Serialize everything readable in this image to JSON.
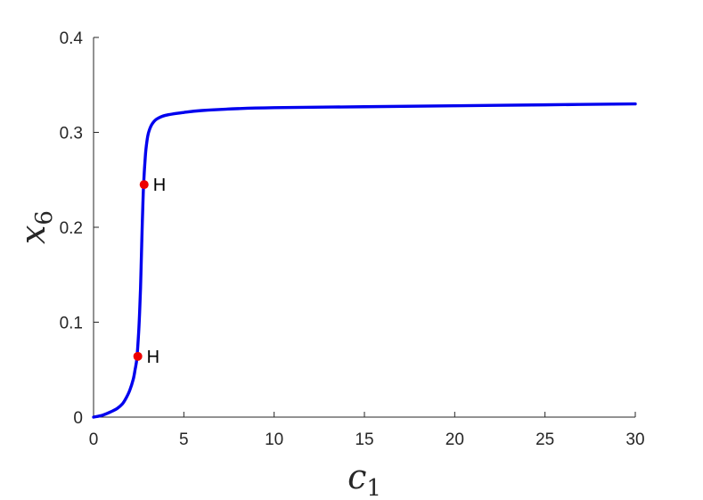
{
  "chart_data": {
    "type": "line",
    "xlabel": {
      "main": "c",
      "sub": "1"
    },
    "ylabel": {
      "main": "x",
      "sub": "6"
    },
    "xlim": [
      0,
      30
    ],
    "ylim": [
      0,
      0.4
    ],
    "x_ticks": [
      0,
      5,
      10,
      15,
      20,
      25,
      30
    ],
    "x_tick_labels": [
      "0",
      "5",
      "10",
      "15",
      "20",
      "25",
      "30"
    ],
    "y_ticks": [
      0,
      0.1,
      0.2,
      0.3,
      0.4
    ],
    "y_tick_labels": [
      "0",
      "0.1",
      "0.2",
      "0.3",
      "0.4"
    ],
    "grid": false,
    "series": [
      {
        "color": "#0000ee",
        "x": [
          0,
          0.5,
          1.0,
          1.3,
          1.6,
          1.8,
          2.0,
          2.2,
          2.3,
          2.4,
          2.5,
          2.55,
          2.6,
          2.65,
          2.7,
          2.75,
          2.8,
          2.85,
          2.9,
          3.0,
          3.1,
          3.25,
          3.5,
          4.0,
          5.0,
          6.0,
          8.0,
          10,
          15,
          20,
          25,
          30
        ],
        "y": [
          0,
          0.002,
          0.006,
          0.009,
          0.014,
          0.02,
          0.028,
          0.04,
          0.05,
          0.062,
          0.09,
          0.11,
          0.135,
          0.17,
          0.205,
          0.235,
          0.255,
          0.27,
          0.282,
          0.296,
          0.303,
          0.309,
          0.314,
          0.318,
          0.321,
          0.323,
          0.325,
          0.326,
          0.327,
          0.328,
          0.329,
          0.33
        ]
      }
    ],
    "points": [
      {
        "x": 2.45,
        "y": 0.064,
        "label": "H",
        "color": "#ee0000"
      },
      {
        "x": 2.8,
        "y": 0.245,
        "label": "H",
        "color": "#ee0000"
      }
    ]
  }
}
